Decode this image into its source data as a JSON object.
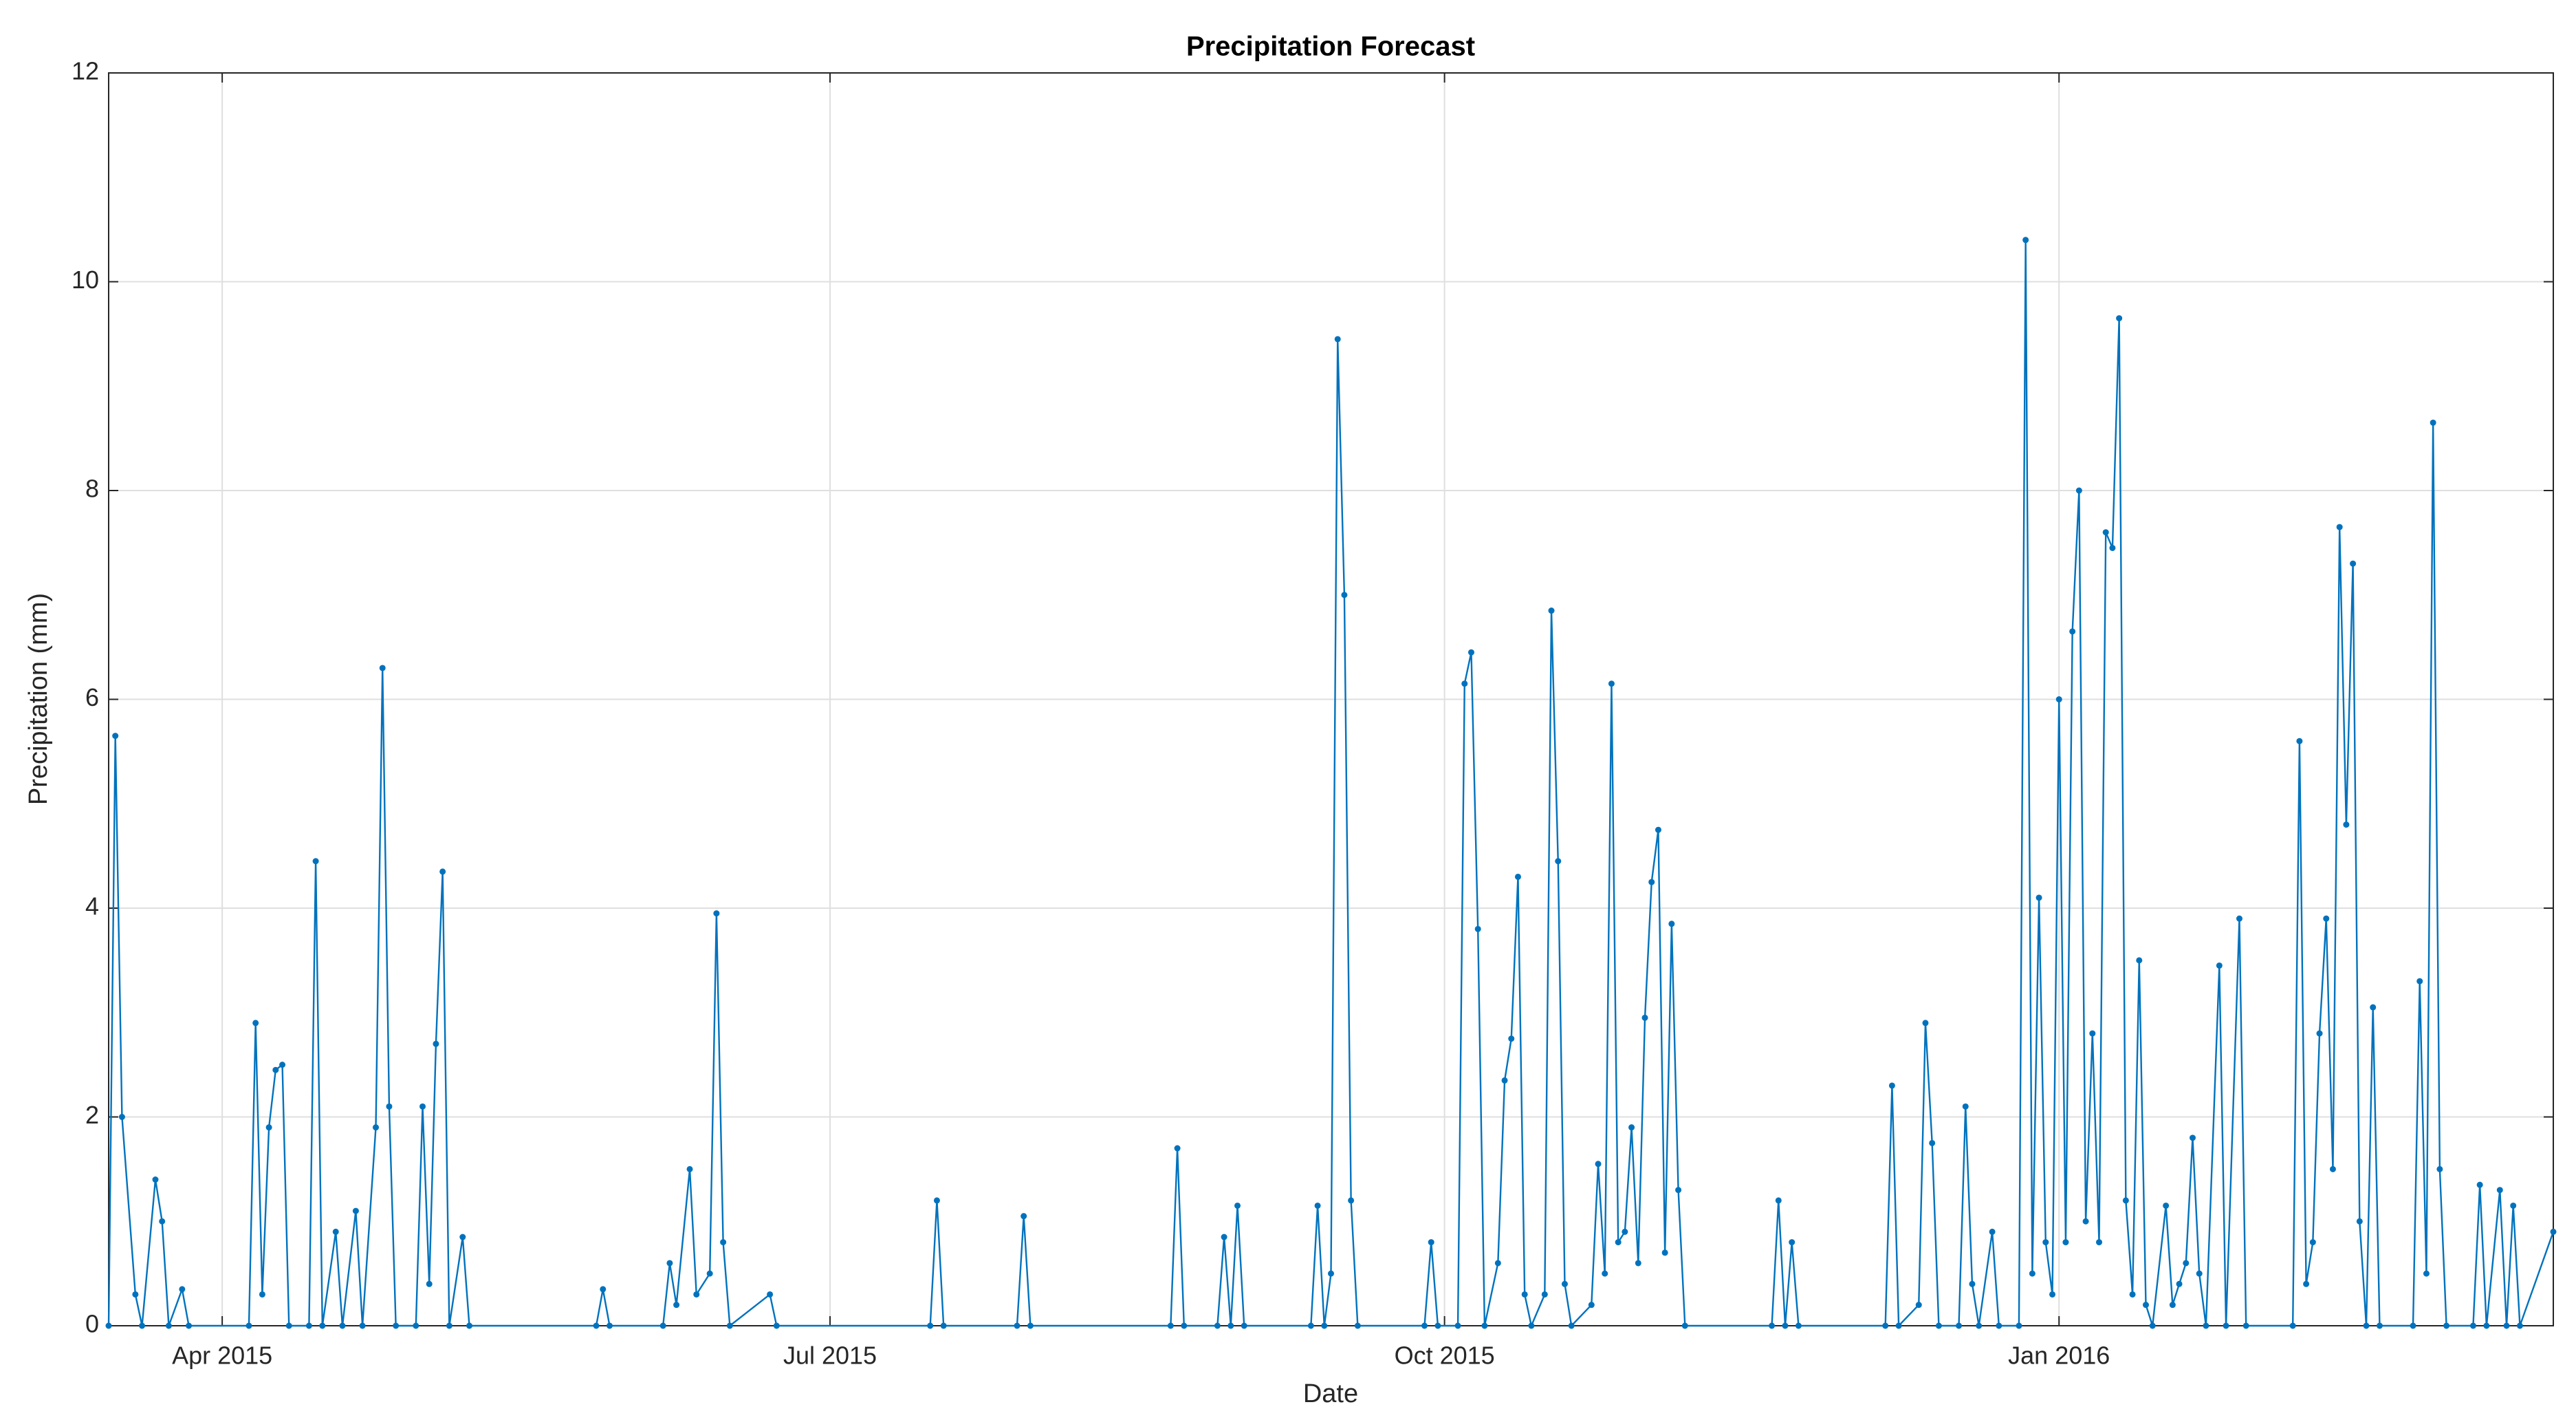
{
  "chart_data": {
    "type": "line",
    "title": "Precipitation Forecast",
    "xlabel": "Date",
    "ylabel": "Precipitation (mm)",
    "xlim": [
      "2015-03-15",
      "2016-03-15"
    ],
    "xticks": [
      {
        "value": "2015-04-01",
        "label": "Apr 2015"
      },
      {
        "value": "2015-07-01",
        "label": "Jul 2015"
      },
      {
        "value": "2015-10-01",
        "label": "Oct 2015"
      },
      {
        "value": "2016-01-01",
        "label": "Jan 2016"
      }
    ],
    "ylim": [
      0,
      12
    ],
    "yticks": [
      0,
      2,
      4,
      6,
      8,
      10,
      12
    ],
    "grid": true,
    "color": "#0072bd",
    "x": [
      "2015-03-15",
      "2015-03-16",
      "2015-03-17",
      "2015-03-19",
      "2015-03-20",
      "2015-03-22",
      "2015-03-23",
      "2015-03-24",
      "2015-03-26",
      "2015-03-27",
      "2015-04-05",
      "2015-04-06",
      "2015-04-07",
      "2015-04-08",
      "2015-04-09",
      "2015-04-10",
      "2015-04-11",
      "2015-04-14",
      "2015-04-15",
      "2015-04-16",
      "2015-04-18",
      "2015-04-19",
      "2015-04-21",
      "2015-04-22",
      "2015-04-24",
      "2015-04-25",
      "2015-04-26",
      "2015-04-27",
      "2015-04-30",
      "2015-05-01",
      "2015-05-02",
      "2015-05-03",
      "2015-05-04",
      "2015-05-05",
      "2015-05-07",
      "2015-05-08",
      "2015-05-27",
      "2015-05-28",
      "2015-05-29",
      "2015-06-06",
      "2015-06-07",
      "2015-06-08",
      "2015-06-10",
      "2015-06-11",
      "2015-06-13",
      "2015-06-14",
      "2015-06-15",
      "2015-06-16",
      "2015-06-22",
      "2015-06-23",
      "2015-07-16",
      "2015-07-17",
      "2015-07-18",
      "2015-07-29",
      "2015-07-30",
      "2015-07-31",
      "2015-08-21",
      "2015-08-22",
      "2015-08-23",
      "2015-08-28",
      "2015-08-29",
      "2015-08-30",
      "2015-08-31",
      "2015-09-01",
      "2015-09-11",
      "2015-09-12",
      "2015-09-13",
      "2015-09-14",
      "2015-09-15",
      "2015-09-16",
      "2015-09-17",
      "2015-09-18",
      "2015-09-28",
      "2015-09-29",
      "2015-09-30",
      "2015-10-03",
      "2015-10-04",
      "2015-10-05",
      "2015-10-06",
      "2015-10-07",
      "2015-10-09",
      "2015-10-10",
      "2015-10-11",
      "2015-10-12",
      "2015-10-13",
      "2015-10-14",
      "2015-10-16",
      "2015-10-17",
      "2015-10-18",
      "2015-10-19",
      "2015-10-20",
      "2015-10-23",
      "2015-10-24",
      "2015-10-25",
      "2015-10-26",
      "2015-10-27",
      "2015-10-28",
      "2015-10-29",
      "2015-10-30",
      "2015-10-31",
      "2015-11-01",
      "2015-11-02",
      "2015-11-03",
      "2015-11-04",
      "2015-11-05",
      "2015-11-06",
      "2015-11-19",
      "2015-11-20",
      "2015-11-21",
      "2015-11-22",
      "2015-11-23",
      "2015-12-06",
      "2015-12-07",
      "2015-12-08",
      "2015-12-11",
      "2015-12-12",
      "2015-12-13",
      "2015-12-14",
      "2015-12-17",
      "2015-12-18",
      "2015-12-19",
      "2015-12-20",
      "2015-12-22",
      "2015-12-23",
      "2015-12-26",
      "2015-12-27",
      "2015-12-28",
      "2015-12-29",
      "2015-12-30",
      "2015-12-31",
      "2016-01-01",
      "2016-01-02",
      "2016-01-03",
      "2016-01-04",
      "2016-01-05",
      "2016-01-06",
      "2016-01-07",
      "2016-01-08",
      "2016-01-09",
      "2016-01-10",
      "2016-01-11",
      "2016-01-12",
      "2016-01-13",
      "2016-01-14",
      "2016-01-15",
      "2016-01-17",
      "2016-01-18",
      "2016-01-19",
      "2016-01-20",
      "2016-01-21",
      "2016-01-22",
      "2016-01-23",
      "2016-01-25",
      "2016-01-26",
      "2016-01-28",
      "2016-01-29",
      "2016-02-05",
      "2016-02-06",
      "2016-02-07",
      "2016-02-08",
      "2016-02-09",
      "2016-02-10",
      "2016-02-11",
      "2016-02-12",
      "2016-02-13",
      "2016-02-14",
      "2016-02-15",
      "2016-02-16",
      "2016-02-17",
      "2016-02-18",
      "2016-02-23",
      "2016-02-24",
      "2016-02-25",
      "2016-02-26",
      "2016-02-27",
      "2016-02-28",
      "2016-03-03",
      "2016-03-04",
      "2016-03-05",
      "2016-03-07",
      "2016-03-08",
      "2016-03-09",
      "2016-03-10",
      "2016-03-15"
    ],
    "values": [
      0,
      5.65,
      2.0,
      0.3,
      0,
      1.4,
      1.0,
      0,
      0.35,
      0,
      0,
      2.9,
      0.3,
      1.9,
      2.45,
      2.5,
      0,
      0,
      4.45,
      0,
      0.9,
      0,
      1.1,
      0,
      1.9,
      6.3,
      2.1,
      0,
      0,
      2.1,
      0.4,
      2.7,
      4.35,
      0,
      0.85,
      0,
      0,
      0.35,
      0,
      0,
      0.6,
      0.2,
      1.5,
      0.3,
      0.5,
      3.95,
      0.8,
      0,
      0.3,
      0,
      0,
      1.2,
      0,
      0,
      1.05,
      0,
      0,
      1.7,
      0,
      0,
      0.85,
      0,
      1.15,
      0,
      0,
      1.15,
      0,
      0.5,
      9.45,
      7.0,
      1.2,
      0,
      0,
      0.8,
      0,
      0,
      6.15,
      6.45,
      3.8,
      0,
      0.6,
      2.35,
      2.75,
      4.3,
      0.3,
      0,
      0.3,
      6.85,
      4.45,
      0.4,
      0,
      0.2,
      1.55,
      0.5,
      6.15,
      0.8,
      0.9,
      1.9,
      0.6,
      2.95,
      4.25,
      4.75,
      0.7,
      3.85,
      1.3,
      0,
      0,
      1.2,
      0,
      0.8,
      0,
      0,
      2.3,
      0,
      0.2,
      2.9,
      1.75,
      0,
      0,
      2.1,
      0.4,
      0,
      0.9,
      0,
      0,
      10.4,
      0.5,
      4.1,
      0.8,
      0.3,
      6.0,
      0.8,
      6.65,
      8.0,
      1.0,
      2.8,
      0.8,
      7.6,
      7.45,
      9.65,
      1.2,
      0.3,
      3.5,
      0.2,
      0,
      1.15,
      0.2,
      0.4,
      0.6,
      1.8,
      0.5,
      0,
      3.45,
      0,
      3.9,
      0,
      0,
      5.6,
      0.4,
      0.8,
      2.8,
      3.9,
      1.5,
      7.65,
      4.8,
      7.3,
      1.0,
      0,
      3.05,
      0,
      0,
      3.3,
      0.5,
      8.65,
      1.5,
      0,
      0,
      1.35,
      0,
      1.3,
      0,
      1.15,
      0,
      0.9
    ]
  }
}
